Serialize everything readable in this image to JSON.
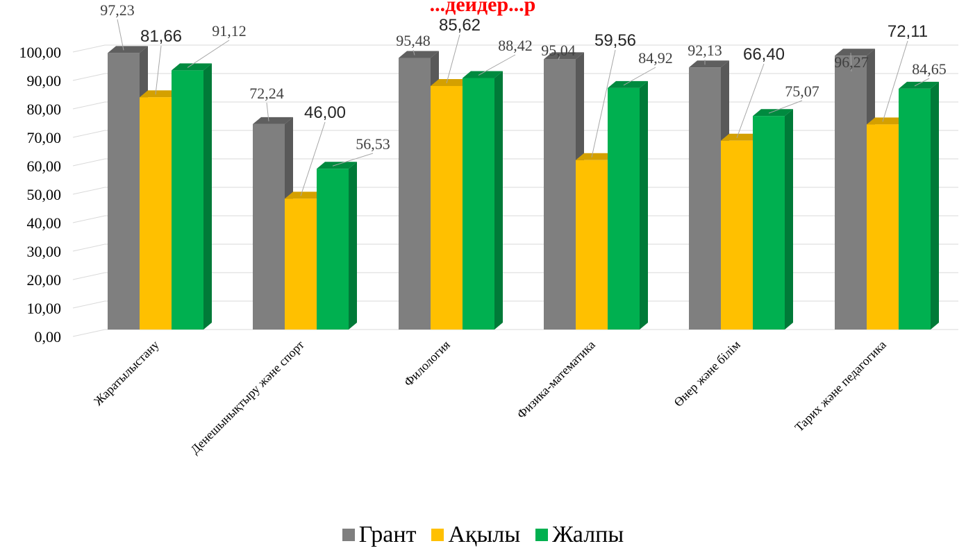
{
  "chart_data": {
    "type": "bar",
    "title": "...дейдер...р",
    "categories": [
      "Жаратылыстану",
      "Денешынықтыру және спорт",
      "Филология",
      "Физика-математика",
      "Өнер және білім",
      "Тарих және педагогика"
    ],
    "series": [
      {
        "name": "Грант",
        "values": [
          97.23,
          72.24,
          95.48,
          95.04,
          92.13,
          96.27
        ],
        "labels": [
          "97,23",
          "72,24",
          "95,48",
          "95,04",
          "92,13",
          "96,27"
        ],
        "color": "#7f7f7f",
        "side_color": "#595959",
        "top_color": "#5f5f5f"
      },
      {
        "name": "Ақылы",
        "values": [
          81.66,
          46.0,
          85.62,
          59.56,
          66.4,
          72.11
        ],
        "labels": [
          "81,66",
          "46,00",
          "85,62",
          "59,56",
          "66,40",
          "72,11"
        ],
        "color": "#ffc000",
        "side_color": "#bf9000",
        "top_color": "#d4a000"
      },
      {
        "name": "Жалпы",
        "values": [
          91.12,
          56.53,
          88.42,
          84.92,
          75.07,
          84.65
        ],
        "labels": [
          "91,12",
          "56,53",
          "88,42",
          "84,92",
          "75,07",
          "84,65"
        ],
        "color": "#00b050",
        "side_color": "#007a38",
        "top_color": "#008a3f"
      }
    ],
    "y_ticks": [
      "0,00",
      "10,00",
      "20,00",
      "30,00",
      "40,00",
      "50,00",
      "60,00",
      "70,00",
      "80,00",
      "90,00",
      "100,00"
    ],
    "ylim": [
      0,
      100
    ],
    "grid": true,
    "legend_position": "bottom"
  }
}
